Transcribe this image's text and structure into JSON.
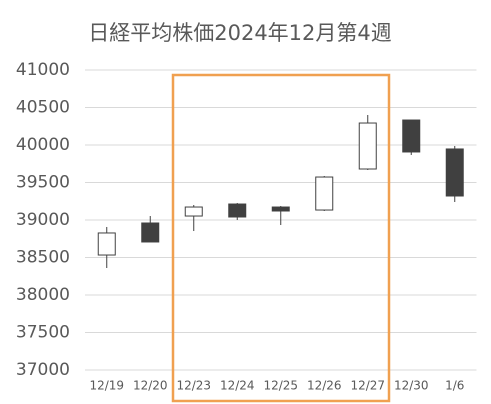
{
  "chart_data": {
    "type": "candlestick",
    "title": "日経平均株価2024年12月第4週",
    "categories": [
      "12/19",
      "12/20",
      "12/23",
      "12/24",
      "12/25",
      "12/26",
      "12/27",
      "12/30",
      "1/6"
    ],
    "open": [
      38533,
      38960,
      39053,
      39213,
      39173,
      39133,
      39680,
      40333,
      39947
    ],
    "high": [
      38907,
      39053,
      39200,
      39227,
      39187,
      39587,
      40400,
      40333,
      39987
    ],
    "low": [
      38360,
      38707,
      38853,
      39000,
      38933,
      39120,
      39667,
      39867,
      39240
    ],
    "close": [
      38827,
      38707,
      39173,
      39040,
      39120,
      39573,
      40293,
      39907,
      39320
    ],
    "up_color": "#ffffff",
    "down_color": "#404040",
    "ylim": [
      37000,
      41000
    ],
    "yticks": [
      37000,
      37500,
      38000,
      38500,
      39000,
      39500,
      40000,
      40500,
      41000
    ],
    "grid": true
  }
}
